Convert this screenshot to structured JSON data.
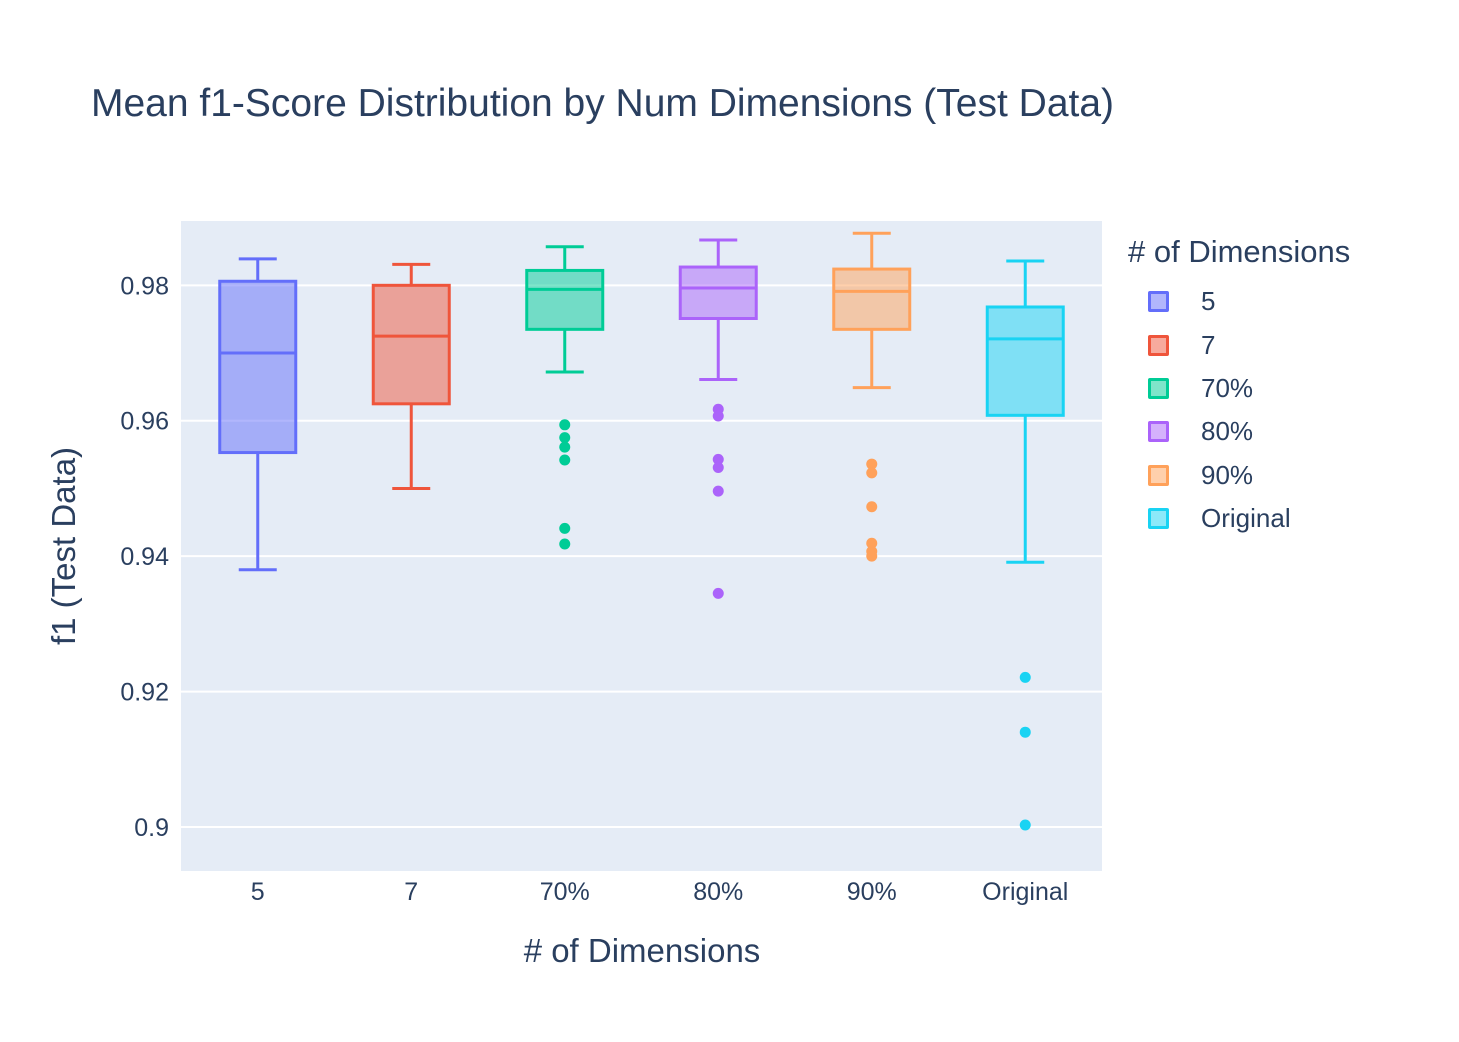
{
  "chart_data": {
    "type": "box",
    "title": "Mean f1-Score Distribution by Num Dimensions (Test Data)",
    "xlabel": "# of Dimensions",
    "ylabel": "f1 (Test Data)",
    "ylim": [
      0.8935,
      0.9895
    ],
    "yticks": [
      0.9,
      0.92,
      0.94,
      0.96,
      0.98
    ],
    "ytick_labels": [
      "0.9",
      "0.92",
      "0.94",
      "0.96",
      "0.98"
    ],
    "categories": [
      "5",
      "7",
      "70%",
      "80%",
      "90%",
      "Original"
    ],
    "legend": {
      "title": "# of Dimensions",
      "placement": "right",
      "entries": [
        "5",
        "7",
        "70%",
        "80%",
        "90%",
        "Original"
      ]
    },
    "series": [
      {
        "name": "5",
        "color": "#636efa",
        "fill": "rgba(99,110,250,0.5)",
        "min": 0.938,
        "q1": 0.9553,
        "median": 0.97,
        "q3": 0.9806,
        "max": 0.9839,
        "outliers": []
      },
      {
        "name": "7",
        "color": "#ef553b",
        "fill": "rgba(239,85,59,0.5)",
        "min": 0.95,
        "q1": 0.9625,
        "median": 0.9725,
        "q3": 0.98,
        "max": 0.9831,
        "outliers": []
      },
      {
        "name": "70%",
        "color": "#00cc96",
        "fill": "rgba(0,204,150,0.5)",
        "min": 0.9672,
        "q1": 0.9735,
        "median": 0.9794,
        "q3": 0.9822,
        "max": 0.9857,
        "outliers": [
          0.9594,
          0.9575,
          0.9561,
          0.9542,
          0.9441,
          0.9418
        ]
      },
      {
        "name": "80%",
        "color": "#ab63fa",
        "fill": "rgba(171,99,250,0.5)",
        "min": 0.9661,
        "q1": 0.9751,
        "median": 0.9796,
        "q3": 0.9827,
        "max": 0.9867,
        "outliers": [
          0.9617,
          0.9607,
          0.9543,
          0.9531,
          0.9496,
          0.9345
        ]
      },
      {
        "name": "90%",
        "color": "#ffa15a",
        "fill": "rgba(255,161,90,0.5)",
        "min": 0.9649,
        "q1": 0.9735,
        "median": 0.9791,
        "q3": 0.9824,
        "max": 0.9877,
        "outliers": [
          0.9536,
          0.9523,
          0.9473,
          0.9419,
          0.9407,
          0.94
        ]
      },
      {
        "name": "Original",
        "color": "#19d3f3",
        "fill": "rgba(25,211,243,0.5)",
        "min": 0.9391,
        "q1": 0.9608,
        "median": 0.9721,
        "q3": 0.9768,
        "max": 0.9836,
        "outliers": [
          0.9221,
          0.914,
          0.9003
        ]
      }
    ]
  }
}
